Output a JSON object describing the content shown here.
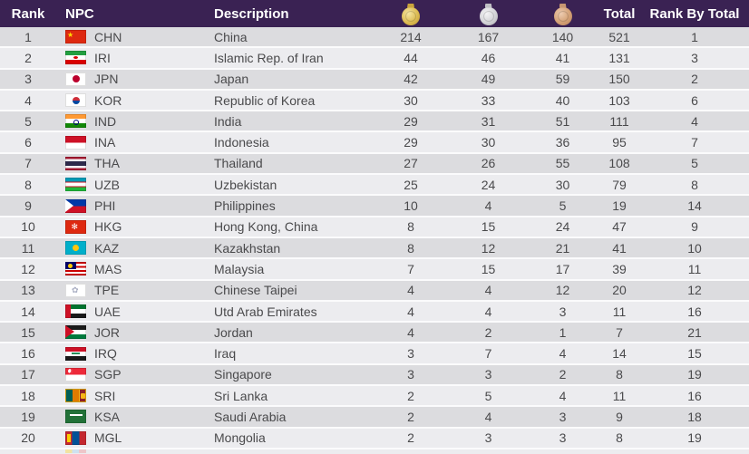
{
  "table": {
    "columns": {
      "rank": "Rank",
      "npc": "NPC",
      "description": "Description",
      "gold_icon": "gold-medal",
      "silver_icon": "silver-medal",
      "bronze_icon": "bronze-medal",
      "total": "Total",
      "rank_by_total": "Rank By Total"
    },
    "rows": [
      {
        "rank": "1",
        "code": "CHN",
        "description": "China",
        "gold": "214",
        "silver": "167",
        "bronze": "140",
        "total": "521",
        "rank_by_total": "1"
      },
      {
        "rank": "2",
        "code": "IRI",
        "description": "Islamic Rep. of Iran",
        "gold": "44",
        "silver": "46",
        "bronze": "41",
        "total": "131",
        "rank_by_total": "3"
      },
      {
        "rank": "3",
        "code": "JPN",
        "description": "Japan",
        "gold": "42",
        "silver": "49",
        "bronze": "59",
        "total": "150",
        "rank_by_total": "2"
      },
      {
        "rank": "4",
        "code": "KOR",
        "description": "Republic of Korea",
        "gold": "30",
        "silver": "33",
        "bronze": "40",
        "total": "103",
        "rank_by_total": "6"
      },
      {
        "rank": "5",
        "code": "IND",
        "description": "India",
        "gold": "29",
        "silver": "31",
        "bronze": "51",
        "total": "111",
        "rank_by_total": "4"
      },
      {
        "rank": "6",
        "code": "INA",
        "description": "Indonesia",
        "gold": "29",
        "silver": "30",
        "bronze": "36",
        "total": "95",
        "rank_by_total": "7"
      },
      {
        "rank": "7",
        "code": "THA",
        "description": "Thailand",
        "gold": "27",
        "silver": "26",
        "bronze": "55",
        "total": "108",
        "rank_by_total": "5"
      },
      {
        "rank": "8",
        "code": "UZB",
        "description": "Uzbekistan",
        "gold": "25",
        "silver": "24",
        "bronze": "30",
        "total": "79",
        "rank_by_total": "8"
      },
      {
        "rank": "9",
        "code": "PHI",
        "description": "Philippines",
        "gold": "10",
        "silver": "4",
        "bronze": "5",
        "total": "19",
        "rank_by_total": "14"
      },
      {
        "rank": "10",
        "code": "HKG",
        "description": "Hong Kong, China",
        "gold": "8",
        "silver": "15",
        "bronze": "24",
        "total": "47",
        "rank_by_total": "9"
      },
      {
        "rank": "11",
        "code": "KAZ",
        "description": "Kazakhstan",
        "gold": "8",
        "silver": "12",
        "bronze": "21",
        "total": "41",
        "rank_by_total": "10"
      },
      {
        "rank": "12",
        "code": "MAS",
        "description": "Malaysia",
        "gold": "7",
        "silver": "15",
        "bronze": "17",
        "total": "39",
        "rank_by_total": "11"
      },
      {
        "rank": "13",
        "code": "TPE",
        "description": "Chinese Taipei",
        "gold": "4",
        "silver": "4",
        "bronze": "12",
        "total": "20",
        "rank_by_total": "12"
      },
      {
        "rank": "14",
        "code": "UAE",
        "description": "Utd Arab Emirates",
        "gold": "4",
        "silver": "4",
        "bronze": "3",
        "total": "11",
        "rank_by_total": "16"
      },
      {
        "rank": "15",
        "code": "JOR",
        "description": "Jordan",
        "gold": "4",
        "silver": "2",
        "bronze": "1",
        "total": "7",
        "rank_by_total": "21"
      },
      {
        "rank": "16",
        "code": "IRQ",
        "description": "Iraq",
        "gold": "3",
        "silver": "7",
        "bronze": "4",
        "total": "14",
        "rank_by_total": "15"
      },
      {
        "rank": "17",
        "code": "SGP",
        "description": "Singapore",
        "gold": "3",
        "silver": "3",
        "bronze": "2",
        "total": "8",
        "rank_by_total": "19"
      },
      {
        "rank": "18",
        "code": "SRI",
        "description": "Sri Lanka",
        "gold": "2",
        "silver": "5",
        "bronze": "4",
        "total": "11",
        "rank_by_total": "16"
      },
      {
        "rank": "19",
        "code": "KSA",
        "description": "Saudi Arabia",
        "gold": "2",
        "silver": "4",
        "bronze": "3",
        "total": "9",
        "rank_by_total": "18"
      },
      {
        "rank": "20",
        "code": "MGL",
        "description": "Mongolia",
        "gold": "2",
        "silver": "3",
        "bronze": "3",
        "total": "8",
        "rank_by_total": "19"
      }
    ]
  },
  "colors": {
    "header_bg": "#3a2253",
    "header_text": "#ffffff",
    "row_odd": "#dcdcdf",
    "row_even": "#ececef",
    "body_text": "#4a4a4c",
    "medal_gold": "#dcbb52",
    "medal_silver": "#d3d3d7",
    "medal_bronze": "#d3a075"
  }
}
